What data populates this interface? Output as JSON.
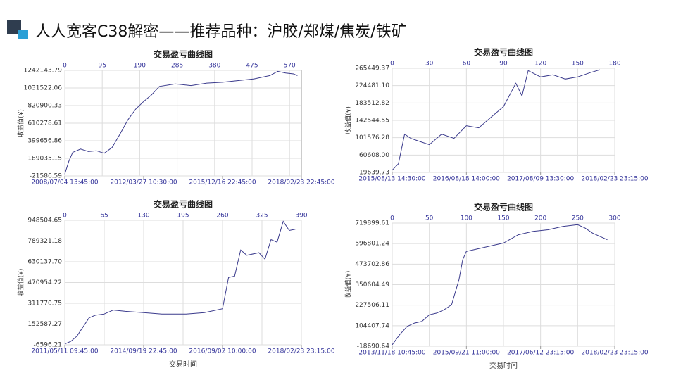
{
  "header": {
    "title": "人人宽客C38解密——推荐品种：沪胶/郑煤/焦炭/铁矿"
  },
  "chart_data": [
    {
      "type": "line",
      "title": "交易盈亏曲线图",
      "y_label": "收益值(¥)",
      "color": "#3a3a8c",
      "grid": true,
      "xlim": [
        0,
        600
      ],
      "xticks": [
        0,
        95,
        190,
        285,
        380,
        475,
        570
      ],
      "date_labels": [
        "2008/07/04 13:45:00",
        "2012/03/27 10:30:00",
        "2015/12/16 22:45:00",
        "2018/02/23 22:45:00"
      ],
      "ylim": [
        -21586.59,
        1242143.79
      ],
      "yticks": [
        -21586.59,
        189035.15,
        399656.86,
        610278.61,
        820900.33,
        1031522.06,
        1242143.79
      ],
      "x": [
        0,
        10,
        20,
        40,
        60,
        80,
        100,
        120,
        140,
        160,
        180,
        200,
        220,
        240,
        280,
        320,
        360,
        400,
        440,
        480,
        520,
        540,
        560,
        580,
        590
      ],
      "values": [
        0,
        150000,
        260000,
        300000,
        270000,
        280000,
        250000,
        320000,
        480000,
        650000,
        780000,
        870000,
        950000,
        1050000,
        1080000,
        1060000,
        1090000,
        1100000,
        1120000,
        1140000,
        1180000,
        1230000,
        1210000,
        1200000,
        1180000
      ]
    },
    {
      "type": "line",
      "title": "交易盈亏曲线图",
      "y_label": "收益值(¥)",
      "color": "#3a3a8c",
      "grid": true,
      "xlim": [
        0,
        180
      ],
      "xticks": [
        0,
        30,
        60,
        90,
        120,
        150,
        180
      ],
      "date_labels": [
        "2015/08/13 14:30:00",
        "2016/08/18 14:00:00",
        "2017/08/09 13:30:00",
        "2018/02/23 23:15:00"
      ],
      "ylim": [
        19639.73,
        265449.37
      ],
      "yticks": [
        19639.73,
        {
          "value": 60608,
          "label": "60608.00"
        },
        101576.28,
        142544.55,
        183512.82,
        {
          "value": 224481.1,
          "label": "224481.10"
        },
        265449.37
      ],
      "x": [
        0,
        5,
        10,
        15,
        20,
        30,
        40,
        50,
        60,
        70,
        80,
        90,
        100,
        105,
        110,
        120,
        130,
        140,
        150,
        160,
        168
      ],
      "values": [
        25000,
        40000,
        110000,
        100000,
        95000,
        85000,
        110000,
        100000,
        130000,
        125000,
        150000,
        175000,
        230000,
        200000,
        260000,
        245000,
        250000,
        240000,
        245000,
        255000,
        262000
      ]
    },
    {
      "type": "line",
      "title": "交易盈亏曲线图",
      "y_label": "收益值(¥)",
      "x_label": "交易时间",
      "color": "#3a3a8c",
      "grid": true,
      "xlim": [
        0,
        390
      ],
      "xticks": [
        0,
        65,
        130,
        195,
        260,
        325,
        390
      ],
      "date_labels": [
        "2011/05/11 09:45:00",
        "2014/09/19 22:45:00",
        "2016/09/02 10:00:00",
        "2018/02/23 23:15:00"
      ],
      "ylim": [
        -6596.21,
        948504.65
      ],
      "yticks": [
        -6596.21,
        152587.27,
        {
          "value": 311770.75,
          "label": "311770.75"
        },
        470954.22,
        {
          "value": 630137.7,
          "label": "630137.70"
        },
        789321.18,
        948504.65
      ],
      "x": [
        0,
        10,
        20,
        40,
        50,
        65,
        80,
        100,
        130,
        160,
        200,
        230,
        260,
        270,
        280,
        290,
        300,
        320,
        330,
        340,
        350,
        360,
        370,
        380
      ],
      "values": [
        0,
        20000,
        60000,
        200000,
        220000,
        230000,
        260000,
        250000,
        240000,
        230000,
        230000,
        240000,
        270000,
        510000,
        520000,
        720000,
        680000,
        700000,
        650000,
        800000,
        780000,
        940000,
        870000,
        880000
      ]
    },
    {
      "type": "line",
      "title": "交易盈亏曲线图",
      "y_label": "收益值(¥)",
      "x_label": "交易时间",
      "color": "#3a3a8c",
      "grid": true,
      "xlim": [
        0,
        300
      ],
      "xticks": [
        0,
        50,
        100,
        150,
        200,
        250,
        300
      ],
      "date_labels": [
        "2013/11/18 10:45:00",
        "2015/09/21 11:00:00",
        "2017/06/12 23:15:00",
        "2018/02/23 23:15:00"
      ],
      "ylim": [
        -18690.64,
        719899.61
      ],
      "yticks": [
        -18690.64,
        104407.74,
        227506.11,
        350604.49,
        473702.86,
        596801.24,
        719899.61
      ],
      "x": [
        0,
        10,
        20,
        30,
        40,
        50,
        60,
        70,
        80,
        90,
        95,
        100,
        110,
        130,
        150,
        170,
        190,
        210,
        230,
        250,
        260,
        270,
        280,
        290
      ],
      "values": [
        -10000,
        50000,
        100000,
        120000,
        130000,
        170000,
        180000,
        200000,
        230000,
        380000,
        500000,
        550000,
        560000,
        580000,
        600000,
        650000,
        670000,
        680000,
        700000,
        710000,
        690000,
        660000,
        640000,
        620000
      ]
    }
  ]
}
